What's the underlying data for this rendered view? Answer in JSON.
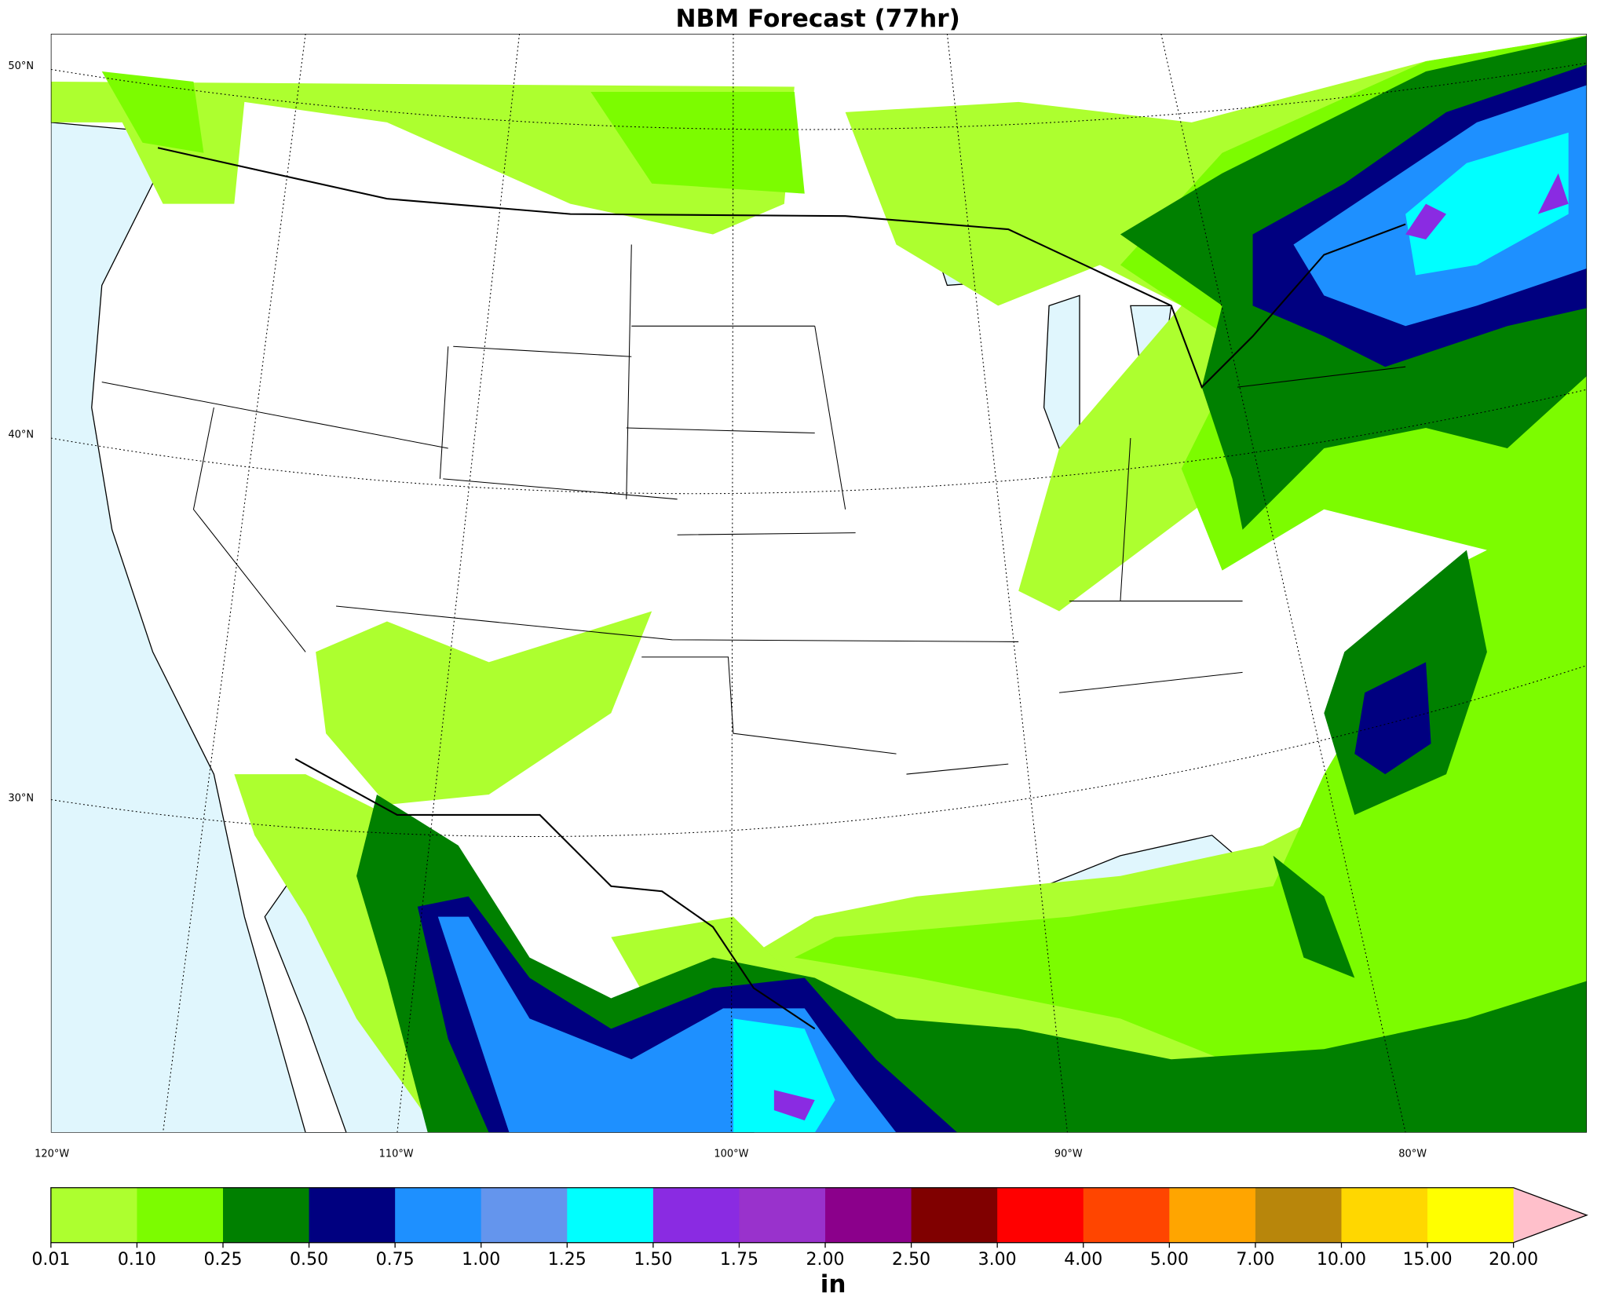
{
  "header": {
    "title": "NBM Forecast (77hr)"
  },
  "map": {
    "lat_labels": [
      "50°N",
      "40°N",
      "30°N"
    ],
    "lon_labels": [
      "120°W",
      "110°W",
      "100°W",
      "90°W",
      "80°W"
    ]
  },
  "colorbar": {
    "label": "in",
    "ticks": [
      "0.01",
      "0.10",
      "0.25",
      "0.50",
      "0.75",
      "1.00",
      "1.25",
      "1.50",
      "1.75",
      "2.00",
      "2.50",
      "3.00",
      "4.00",
      "5.00",
      "7.00",
      "10.00",
      "15.00",
      "20.00"
    ],
    "colors": [
      "#adff2f",
      "#7cfc00",
      "#008000",
      "#000080",
      "#1e90ff",
      "#6495ed",
      "#00ffff",
      "#8a2be2",
      "#9932cc",
      "#8b008b",
      "#800000",
      "#ff0000",
      "#ff4500",
      "#ffa500",
      "#b8860b",
      "#ffd700",
      "#ffff00"
    ],
    "extend_color": "#ffc0cb"
  }
}
